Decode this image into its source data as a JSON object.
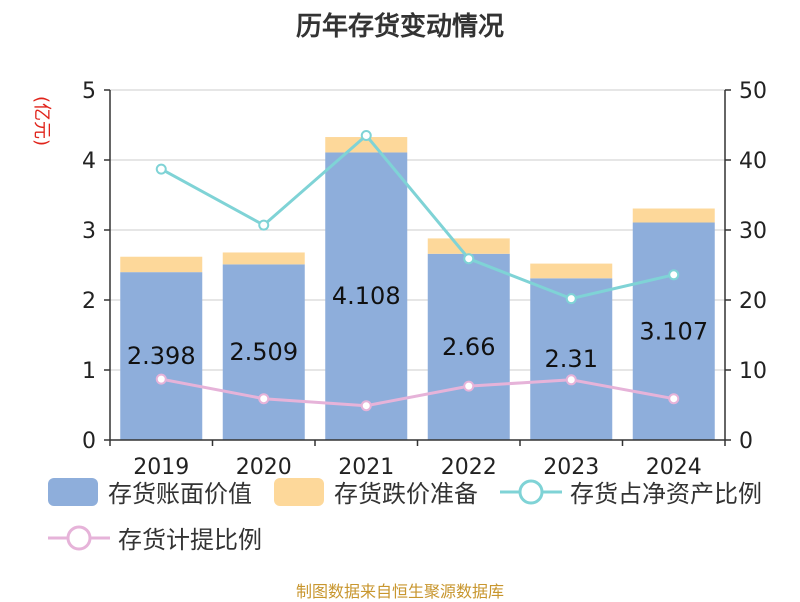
{
  "title": "历年存货变动情况",
  "unit_left": "(亿元)",
  "source": "制图数据来自恒生聚源数据库",
  "legend": {
    "book_value": "存货账面价值",
    "impairment": "存货跌价准备",
    "net_asset_ratio": "存货占净资产比例",
    "provision_ratio": "存货计提比例"
  },
  "colors": {
    "book_value": "#8eaedb",
    "impairment": "#fdd89a",
    "net_asset_ratio": "#7fd3d6",
    "provision_ratio": "#e6b3d9"
  },
  "chart_data": {
    "type": "bar",
    "stacked": true,
    "categories": [
      "2019",
      "2020",
      "2021",
      "2022",
      "2023",
      "2024"
    ],
    "series": [
      {
        "name": "存货账面价值",
        "type": "bar",
        "axis": "left",
        "values": [
          2.398,
          2.509,
          4.108,
          2.66,
          2.31,
          3.107
        ],
        "labels": [
          "2.398",
          "2.509",
          "4.108",
          "2.66",
          "2.31",
          "3.107"
        ]
      },
      {
        "name": "存货跌价准备",
        "type": "bar",
        "axis": "left",
        "values": [
          0.22,
          0.17,
          0.22,
          0.22,
          0.21,
          0.2
        ]
      },
      {
        "name": "存货占净资产比例",
        "type": "line",
        "axis": "right",
        "values": [
          38.7,
          30.7,
          43.5,
          25.9,
          20.2,
          23.6
        ]
      },
      {
        "name": "存货计提比例",
        "type": "line",
        "axis": "right",
        "values": [
          8.7,
          5.9,
          4.9,
          7.7,
          8.6,
          5.9
        ]
      }
    ],
    "left_axis": {
      "min": 0,
      "max": 5,
      "ticks": [
        "0",
        "1",
        "2",
        "3",
        "4",
        "5"
      ]
    },
    "right_axis": {
      "min": 0,
      "max": 50,
      "ticks": [
        "0",
        "10",
        "20",
        "30",
        "40",
        "50"
      ]
    },
    "grid": true,
    "legend_position": "bottom"
  }
}
